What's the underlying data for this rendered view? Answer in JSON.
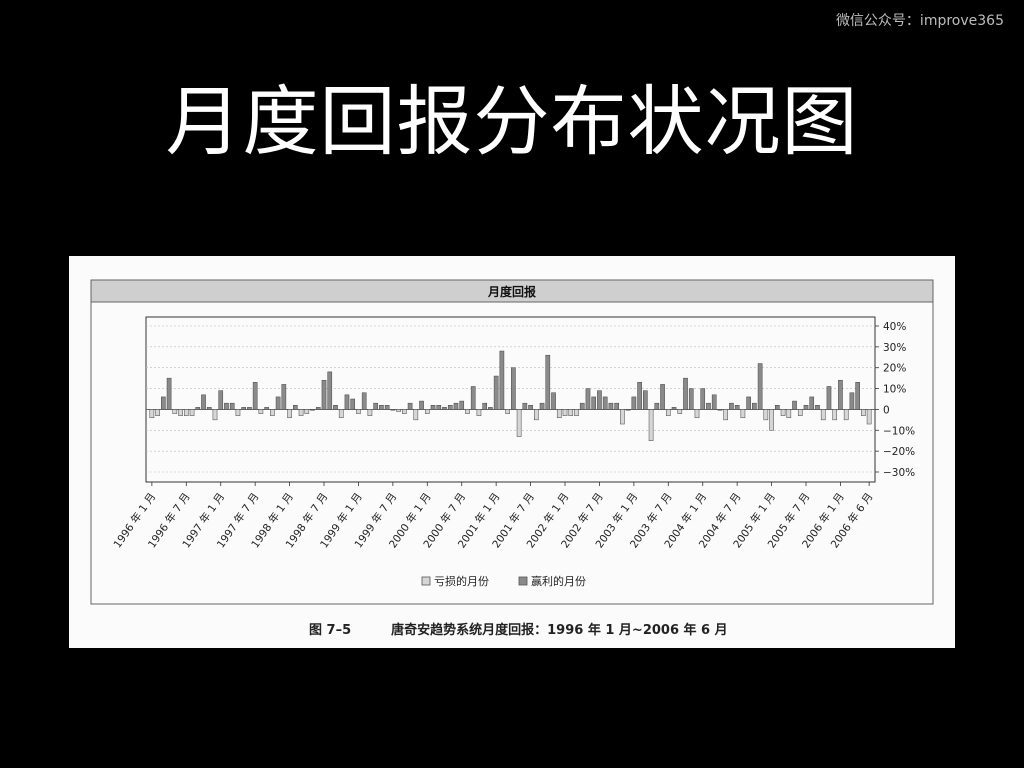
{
  "watermark": "微信公众号：improve365",
  "slide_title": "月度回报分布状况图",
  "caption": {
    "figure_no": "图 7–5",
    "text": "唐奇安趋势系统月度回报：1996 年 1 月~2006 年 6 月"
  },
  "colors": {
    "loss": "#d6d6d6",
    "win": "#8a8a8a",
    "panel_header": "#cfcfcf"
  },
  "chart_data": {
    "type": "bar",
    "title": "月度回报",
    "xlabel": "",
    "ylabel": "",
    "ylim": [
      -30,
      40
    ],
    "yticks": [
      "40%",
      "30%",
      "20%",
      "10%",
      "0",
      "−10%",
      "−20%",
      "−30%"
    ],
    "ytick_values": [
      40,
      30,
      20,
      10,
      0,
      -10,
      -20,
      -30
    ],
    "grid": true,
    "legend_position": "bottom",
    "legend": [
      {
        "label": "亏损的月份",
        "color": "#d6d6d6"
      },
      {
        "label": "赢利的月份",
        "color": "#8a8a8a"
      }
    ],
    "x_tick_labels": [
      "1996 年 1 月",
      "1996 年 7 月",
      "1997 年 1 月",
      "1997 年 7 月",
      "1998 年 1 月",
      "1998 年 7 月",
      "1999 年 1 月",
      "1999 年 7 月",
      "2000 年 1 月",
      "2000 年 7 月",
      "2001 年 1 月",
      "2001 年 7 月",
      "2002 年 1 月",
      "2002 年 7 月",
      "2003 年 1 月",
      "2003 年 7 月",
      "2004 年 1 月",
      "2004 年 7 月",
      "2005 年 1 月",
      "2005 年 7 月",
      "2006 年 1 月",
      "2006 年 6 月"
    ],
    "x_tick_month_index": [
      0,
      6,
      12,
      18,
      24,
      30,
      36,
      42,
      48,
      54,
      60,
      66,
      72,
      78,
      84,
      90,
      96,
      102,
      108,
      114,
      120,
      125
    ],
    "series": [
      {
        "values": [
          -4,
          -3,
          6,
          15,
          -2,
          -3,
          -3,
          -3,
          1,
          7,
          1,
          -5,
          9,
          3,
          3,
          -3,
          1,
          1,
          13,
          -2,
          1,
          -3,
          6,
          12,
          -4,
          2,
          -3,
          -2,
          0,
          1,
          14,
          18,
          2,
          -4,
          7,
          5,
          -2,
          8,
          -3,
          3,
          2,
          2,
          0,
          -1,
          -2,
          3,
          -5,
          4,
          -2,
          2,
          2,
          1,
          2,
          3,
          4,
          -2,
          11,
          -3,
          3,
          1,
          16,
          28,
          -2,
          20,
          -13,
          3,
          2,
          -5,
          3,
          26,
          8,
          -4,
          -3,
          -3,
          -3,
          3,
          10,
          6,
          9,
          6,
          3,
          3,
          -7,
          0,
          6,
          13,
          9,
          -15,
          3,
          12,
          -3,
          1,
          -2,
          15,
          10,
          -4,
          10,
          3,
          7,
          0,
          -5,
          3,
          2,
          -4,
          6,
          3,
          22,
          -5,
          -10,
          2,
          -3,
          -4,
          4,
          -3,
          2,
          6,
          2,
          -5,
          11,
          -5,
          14,
          -5,
          8,
          13,
          -3,
          -7
        ]
      }
    ]
  }
}
